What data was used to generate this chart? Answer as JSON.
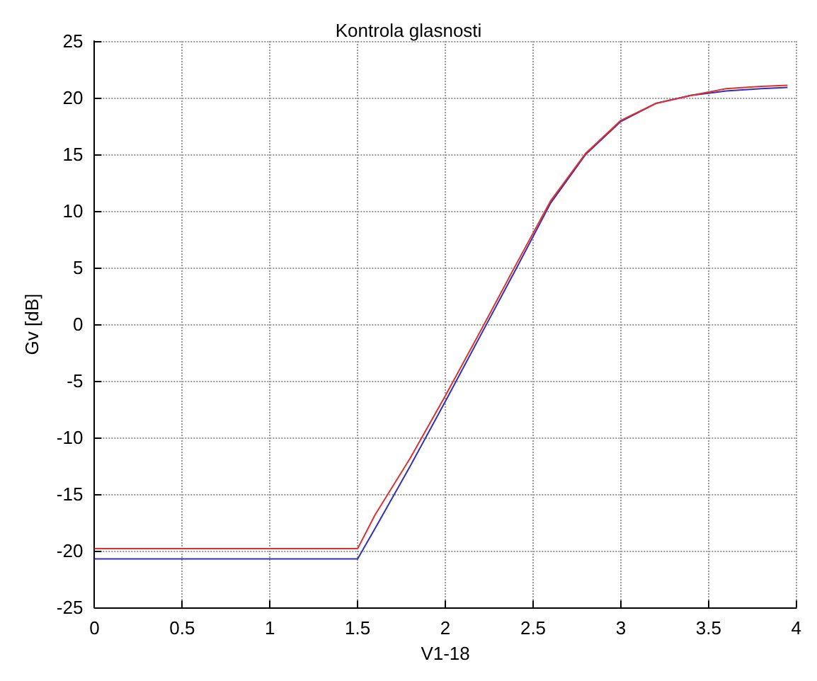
{
  "chart_data": {
    "type": "line",
    "title": "Kontrola glasnosti",
    "xlabel": "V1-18",
    "ylabel": "Gv [dB]",
    "x": [
      0,
      1.5,
      1.6,
      1.8,
      2,
      2.2,
      2.4,
      2.6,
      2.8,
      3,
      3.2,
      3.4,
      3.6,
      3.8,
      3.95
    ],
    "series": [
      {
        "color": "#e03030",
        "values": [
          -19.8,
          -19.8,
          -16.8,
          -11.8,
          -6.3,
          -0.6,
          5.2,
          10.9,
          15.1,
          18,
          19.5,
          20.2,
          20.8,
          21,
          21.1
        ]
      },
      {
        "color": "#3030c0",
        "values": [
          -20.7,
          -20.7,
          -18,
          -12.5,
          -6.8,
          -1,
          4.8,
          10.7,
          15,
          17.9,
          19.5,
          20.2,
          20.6,
          20.8,
          20.9
        ]
      }
    ],
    "xlim": [
      0,
      4
    ],
    "xticks": [
      0,
      0.5,
      1,
      1.5,
      2,
      2.5,
      3,
      3.5,
      4
    ],
    "ylim": [
      -25,
      25
    ],
    "yticks": [
      -25,
      -20,
      -15,
      -10,
      -5,
      0,
      5,
      10,
      15,
      20,
      25
    ],
    "grid": true,
    "marker": "none",
    "line_style": "solid"
  }
}
